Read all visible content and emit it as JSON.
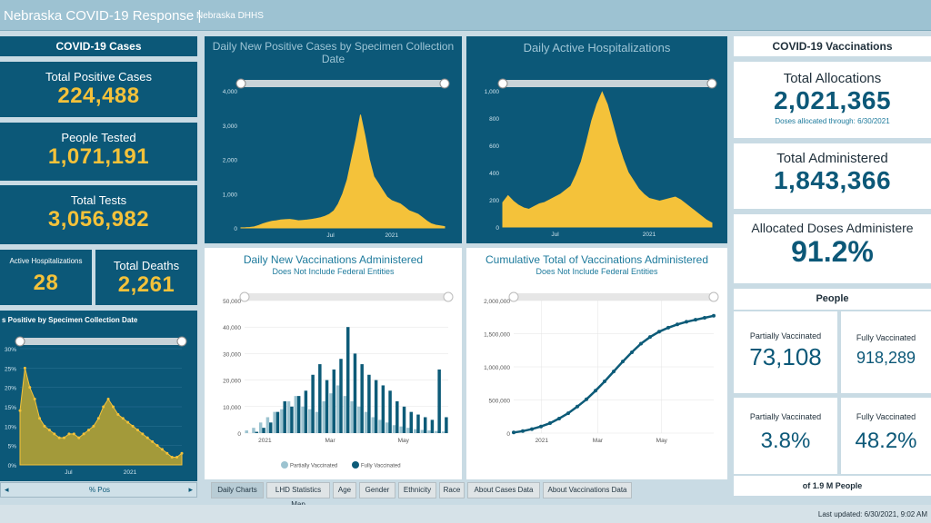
{
  "header": {
    "title": "Nebraska COVID-19 Response",
    "sep": "|",
    "subtitle": "Nebraska DHHS"
  },
  "left": {
    "section_title": "COVID-19 Cases",
    "total_positive_label": "Total Positive Cases",
    "total_positive_value": "224,488",
    "people_tested_label": "People Tested",
    "people_tested_value": "1,071,191",
    "total_tests_label": "Total Tests",
    "total_tests_value": "3,056,982",
    "active_hosp_label": "Active Hospitalizations",
    "active_hosp_value": "28",
    "total_deaths_label": "Total Deaths",
    "total_deaths_value": "2,261",
    "pct_chart_title": "s Positive by Specimen Collection Date",
    "pct_nav_label": "% Pos",
    "pct_nav_left": "◂",
    "pct_nav_right": "▸"
  },
  "right": {
    "section_title": "COVID-19 Vaccinations",
    "alloc_label": "Total Allocations",
    "alloc_value": "2,021,365",
    "alloc_note": "Doses allocated through: 6/30/2021",
    "admin_label": "Total Administered",
    "admin_value": "1,843,366",
    "pct_admin_label": "Allocated Doses Administere",
    "pct_admin_value": "91.2%",
    "people_title": "People",
    "partial_label": "Partially Vaccinated",
    "partial_value": "73,108",
    "fully_label": "Fully Vaccinated",
    "fully_value": "918,289",
    "partial_pct_label": "Partially Vaccinated",
    "partial_pct_value": "3.8%",
    "fully_pct_label": "Fully Vaccinated",
    "fully_pct_value": "48.2%",
    "pop_note": "of 1.9 M People"
  },
  "tabs": [
    "Daily Charts",
    "LHD Statistics Map",
    "Age",
    "Gender",
    "Ethnicity",
    "Race",
    "About Cases Data",
    "About Vaccinations Data"
  ],
  "footer": {
    "last_updated": "Last updated: 6/30/2021, 9:02 AM"
  },
  "colors": {
    "navy": "#0c5878",
    "gold": "#f4c23a",
    "olive": "#a39a3a",
    "light_teal": "#9cc3d0",
    "dark_teal": "#0d5b78"
  },
  "chart_data": [
    {
      "type": "area",
      "title": "Daily New Positive Cases by Specimen Collection Date",
      "ylim": [
        0,
        4000
      ],
      "yticks": [
        "0",
        "1,000",
        "2,000",
        "3,000",
        "4,000"
      ],
      "xticks": [
        "Jul",
        "2021"
      ],
      "series": [
        {
          "values": [
            2,
            5,
            12,
            30,
            70,
            120,
            160,
            190,
            210,
            230,
            240,
            250,
            230,
            210,
            220,
            230,
            250,
            270,
            300,
            340,
            400,
            500,
            700,
            1000,
            1400,
            2000,
            2600,
            3300,
            2700,
            2000,
            1500,
            1300,
            1100,
            900,
            800,
            750,
            700,
            600,
            500,
            450,
            400,
            300,
            200,
            120,
            80,
            60,
            40
          ]
        }
      ]
    },
    {
      "type": "area",
      "title": "Daily Active Hospitalizations",
      "ylim": [
        0,
        1000
      ],
      "yticks": [
        "0",
        "200",
        "400",
        "600",
        "800",
        "1,000"
      ],
      "xticks": [
        "Jul",
        "2021"
      ],
      "series": [
        {
          "values": [
            180,
            230,
            190,
            160,
            140,
            130,
            150,
            170,
            180,
            200,
            220,
            240,
            270,
            300,
            380,
            480,
            620,
            780,
            900,
            990,
            900,
            760,
            620,
            500,
            400,
            340,
            280,
            240,
            210,
            200,
            190,
            200,
            210,
            220,
            200,
            170,
            140,
            110,
            80,
            50,
            30
          ]
        }
      ]
    },
    {
      "type": "bar",
      "title": "Daily New Vaccinations Administered",
      "subtitle": "Does Not Include Federal Entities",
      "ylim": [
        0,
        50000
      ],
      "yticks": [
        "0",
        "10,000",
        "20,000",
        "30,000",
        "40,000",
        "50,000"
      ],
      "xticks": [
        "2021",
        "Mar",
        "May"
      ],
      "legend": [
        "Partially Vaccinated",
        "Fully Vaccinated"
      ],
      "series": [
        {
          "name": "Partially Vaccinated",
          "values": [
            1000,
            2000,
            4000,
            6000,
            8000,
            9000,
            12000,
            14000,
            10000,
            9000,
            8000,
            12000,
            15000,
            18000,
            14000,
            12000,
            10000,
            8000,
            6000,
            5000,
            4000,
            3000,
            2500,
            2000,
            1500,
            1200,
            1000,
            800,
            600
          ]
        },
        {
          "name": "Fully Vaccinated",
          "values": [
            0,
            500,
            2000,
            4000,
            8000,
            12000,
            10000,
            14000,
            16000,
            22000,
            26000,
            20000,
            24000,
            28000,
            40000,
            30000,
            26000,
            22000,
            20000,
            18000,
            16000,
            12000,
            10000,
            8000,
            7000,
            6000,
            5000,
            24000,
            6000
          ]
        }
      ]
    },
    {
      "type": "line",
      "title": "Cumulative Total of Vaccinations Administered",
      "subtitle": "Does Not Include Federal Entities",
      "ylim": [
        0,
        2000000
      ],
      "yticks": [
        "0",
        "500,000",
        "1,000,000",
        "1,500,000",
        "2,000,000"
      ],
      "xticks": [
        "2021",
        "Mar",
        "May"
      ],
      "series": [
        {
          "values": [
            10000,
            30000,
            60000,
            100000,
            150000,
            220000,
            300000,
            400000,
            510000,
            640000,
            780000,
            930000,
            1080000,
            1220000,
            1350000,
            1450000,
            1530000,
            1590000,
            1640000,
            1680000,
            1710000,
            1740000,
            1770000
          ]
        }
      ]
    },
    {
      "type": "area",
      "title": "s Positive by Specimen Collection Date",
      "ylim": [
        0,
        30
      ],
      "yticks": [
        "0%",
        "5%",
        "10%",
        "15%",
        "20%",
        "25%",
        "30%"
      ],
      "xticks": [
        "Jul",
        "2021"
      ],
      "series": [
        {
          "name": "% Pos",
          "values": [
            14,
            25,
            20,
            17,
            12,
            10,
            9,
            8,
            7,
            7,
            8,
            8,
            7,
            8,
            9,
            10,
            12,
            15,
            17,
            15,
            13,
            12,
            11,
            10,
            9,
            8,
            7,
            6,
            5,
            4,
            3,
            2,
            2,
            3
          ]
        }
      ]
    }
  ]
}
